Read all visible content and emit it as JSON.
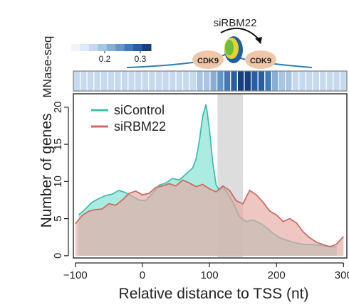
{
  "chart_data": {
    "type": "area",
    "title": "",
    "xlabel": "Relative distance to TSS (nt)",
    "ylabel": "Number of genes",
    "xlim": [
      -103,
      305
    ],
    "ylim": [
      -0.3,
      21.8
    ],
    "xticks": [
      -100,
      0,
      100,
      200,
      300
    ],
    "yticks": [
      0,
      5,
      10,
      15,
      20
    ],
    "legend_position": "top-left",
    "highlight_band": [
      112,
      150
    ],
    "series": [
      {
        "name": "siControl",
        "color": "#3fbfae",
        "fill": "#9ee8dc",
        "x": [
          -95,
          -85,
          -75,
          -65,
          -55,
          -45,
          -35,
          -25,
          -15,
          -5,
          5,
          15,
          25,
          35,
          45,
          55,
          65,
          75,
          80,
          85,
          90,
          95,
          100,
          105,
          110,
          115,
          120,
          125,
          135,
          145,
          155,
          165,
          175,
          185,
          195,
          205,
          215,
          225,
          235,
          245,
          255,
          265,
          275,
          290
        ],
        "y": [
          5.5,
          6.3,
          7.2,
          7.7,
          8.1,
          8.3,
          8.8,
          8.5,
          8.0,
          7.5,
          7.4,
          8.4,
          9.5,
          9.8,
          10.4,
          10.2,
          11.0,
          11.8,
          13.0,
          15.5,
          18.8,
          20.4,
          17.0,
          12.5,
          9.5,
          8.8,
          9.2,
          8.7,
          7.2,
          5.2,
          4.6,
          4.8,
          4.4,
          3.8,
          3.0,
          2.4,
          2.1,
          1.8,
          1.6,
          1.5,
          1.5,
          1.4,
          1.3,
          1.2
        ]
      },
      {
        "name": "siRBM22",
        "color": "#cd6b66",
        "fill": "#e5a7a2",
        "x": [
          -100,
          -90,
          -80,
          -70,
          -60,
          -50,
          -40,
          -30,
          -20,
          -10,
          0,
          10,
          20,
          30,
          40,
          50,
          60,
          70,
          80,
          90,
          100,
          110,
          120,
          130,
          140,
          150,
          160,
          170,
          180,
          190,
          200,
          210,
          220,
          230,
          240,
          250,
          260,
          270,
          280,
          290,
          300
        ],
        "y": [
          4.3,
          5.4,
          6.0,
          6.2,
          6.3,
          7.0,
          6.8,
          7.5,
          8.4,
          8.7,
          8.2,
          8.4,
          9.2,
          9.4,
          9.7,
          9.4,
          10.2,
          9.8,
          9.3,
          9.6,
          9.0,
          8.6,
          9.4,
          8.8,
          7.4,
          7.0,
          8.8,
          8.2,
          7.2,
          6.0,
          5.5,
          4.6,
          5.0,
          4.4,
          3.2,
          2.4,
          1.8,
          1.5,
          1.2,
          1.6,
          2.6
        ]
      }
    ],
    "mnase_colorbar": {
      "label": "MNase-seq",
      "ticks": [
        "0.2",
        "0.3"
      ],
      "colors": [
        "#f1f5fb",
        "#dfe9f5",
        "#c6d9ee",
        "#a9c5e4",
        "#88aed8",
        "#6497ca",
        "#3f79b7",
        "#285ea2",
        "#173f7e"
      ]
    },
    "mnase_heat": {
      "start": -100,
      "step": 10,
      "levels": [
        2,
        2,
        2,
        2,
        2,
        2,
        2,
        2,
        2,
        2,
        2,
        2,
        2,
        2,
        2,
        2,
        2,
        2,
        3,
        3,
        4,
        5,
        6,
        7,
        8,
        8,
        7,
        7,
        6,
        4,
        3,
        3,
        2,
        2,
        2,
        2,
        2,
        2,
        2,
        2
      ]
    },
    "schematic": {
      "top_label": "siRBM22",
      "left_protein": "CDK9",
      "right_protein": "CDK9"
    }
  }
}
